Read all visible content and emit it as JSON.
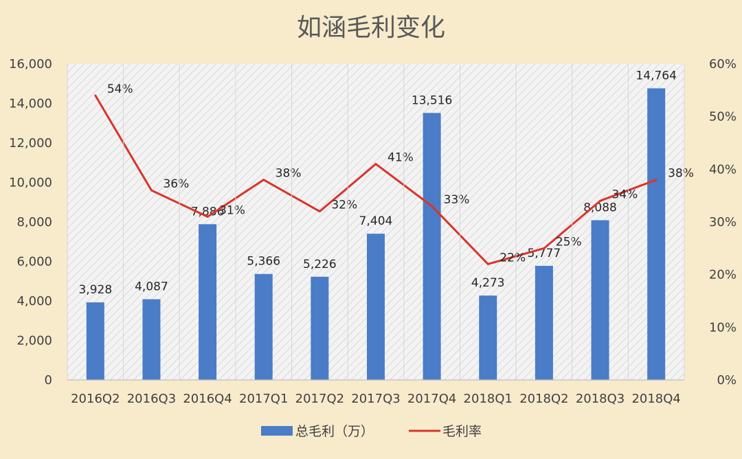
{
  "chart_data": {
    "type": "bar",
    "title": "如涵毛利变化",
    "categories": [
      "2016Q2",
      "2016Q3",
      "2016Q4",
      "2017Q1",
      "2017Q2",
      "2017Q3",
      "2017Q4",
      "2018Q1",
      "2018Q2",
      "2018Q3",
      "2018Q4"
    ],
    "series": [
      {
        "name": "总毛利（万）",
        "type": "bar",
        "axis": "left",
        "color": "#4a7cc7",
        "values": [
          3928,
          4087,
          7886,
          5366,
          5226,
          7404,
          13516,
          4273,
          5777,
          8088,
          14764
        ],
        "labels": [
          "3,928",
          "4,087",
          "7,886",
          "5,366",
          "5,226",
          "7,404",
          "13,516",
          "4,273",
          "5,777",
          "8,088",
          "14,764"
        ]
      },
      {
        "name": "毛利率",
        "type": "line",
        "axis": "right",
        "color": "#d9342b",
        "values": [
          0.54,
          0.36,
          0.31,
          0.38,
          0.32,
          0.41,
          0.33,
          0.22,
          0.25,
          0.34,
          0.38
        ],
        "labels": [
          "54%",
          "36%",
          "31%",
          "38%",
          "32%",
          "41%",
          "33%",
          "22%",
          "25%",
          "34%",
          "38%"
        ]
      }
    ],
    "y_left": {
      "min": 0,
      "max": 16000,
      "ticks": [
        0,
        2000,
        4000,
        6000,
        8000,
        10000,
        12000,
        14000,
        16000
      ],
      "tick_labels": [
        "0",
        "2,000",
        "4,000",
        "6,000",
        "8,000",
        "10,000",
        "12,000",
        "14,000",
        "16,000"
      ]
    },
    "y_right": {
      "min": 0,
      "max": 0.6,
      "ticks": [
        0,
        0.1,
        0.2,
        0.3,
        0.4,
        0.5,
        0.6
      ],
      "tick_labels": [
        "0%",
        "10%",
        "20%",
        "30%",
        "40%",
        "50%",
        "60%"
      ]
    },
    "grid": false,
    "legend_position": "bottom",
    "plot_background": "hatched",
    "colors": {
      "background": "#f7ebcc",
      "plot_background": "#f3f3f3",
      "hatch": "#c8c8c8",
      "bar": "#4a7cc7",
      "line": "#d9342b"
    }
  }
}
